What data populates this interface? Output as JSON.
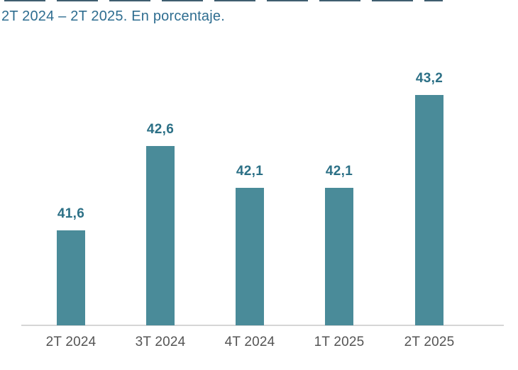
{
  "header": {
    "subtitle": "2T 2024 – 2T 2025. En porcentaje."
  },
  "chart_data": {
    "type": "bar",
    "title": "",
    "subtitle": "2T 2024 – 2T 2025. En porcentaje.",
    "categories": [
      "2T 2024",
      "3T 2024",
      "4T 2024",
      "1T 2025",
      "2T 2025"
    ],
    "values": [
      41.6,
      42.6,
      42.1,
      42.1,
      43.2
    ],
    "value_labels": [
      "41,6",
      "42,6",
      "42,1",
      "42,1",
      "43,2"
    ],
    "xlabel": "",
    "ylabel": "",
    "ylim": [
      40.47,
      43.47
    ],
    "grid": false,
    "legend": false,
    "bar_color": "#4A8B99",
    "value_label_color": "#2C7086",
    "axis_label_color": "#555555",
    "subtitle_color": "#2E6D90",
    "baseline_color": "#D6D6D6"
  }
}
